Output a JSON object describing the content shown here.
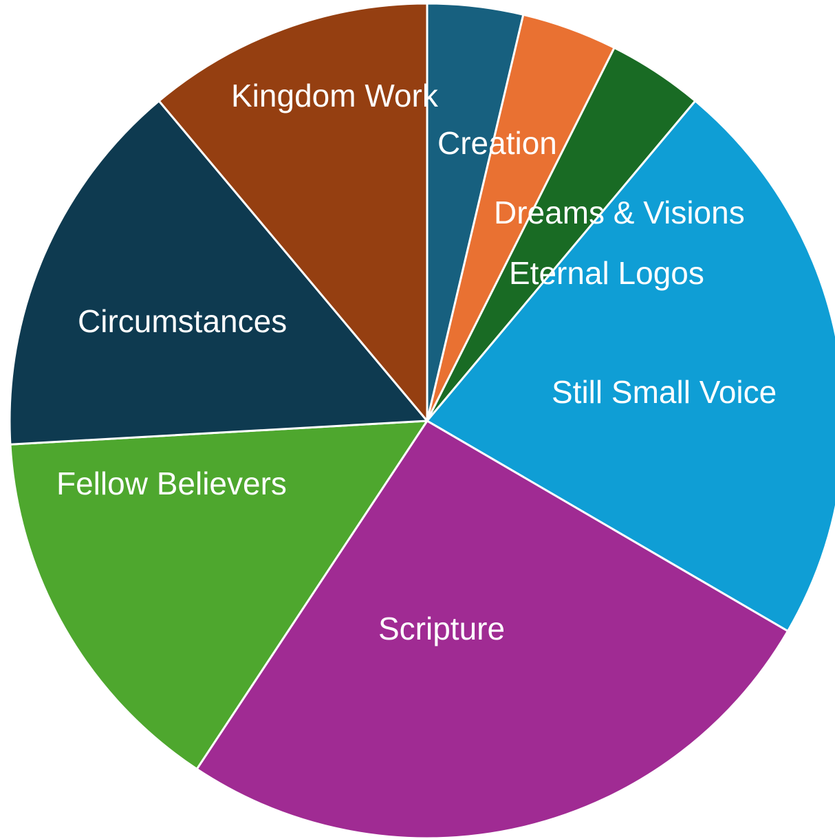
{
  "chart_data": {
    "type": "pie",
    "title": "",
    "start_angle_deg": 0,
    "direction": "clockwise",
    "slices": [
      {
        "label": "Creation",
        "value": 3.7,
        "color": "#17607f"
      },
      {
        "label": "Dreams & Visions",
        "value": 3.7,
        "color": "#e97132"
      },
      {
        "label": "Eternal Logos",
        "value": 3.7,
        "color": "#196b24"
      },
      {
        "label": "Still Small Voice",
        "value": 22.3,
        "color": "#0f9ed5"
      },
      {
        "label": "Scripture",
        "value": 25.9,
        "color": "#a02b93"
      },
      {
        "label": "Fellow Believers",
        "value": 14.8,
        "color": "#4ea72e"
      },
      {
        "label": "Circumstances",
        "value": 14.8,
        "color": "#0e3a50"
      },
      {
        "label": "Kingdom Work",
        "value": 11.1,
        "color": "#953f11"
      }
    ]
  }
}
